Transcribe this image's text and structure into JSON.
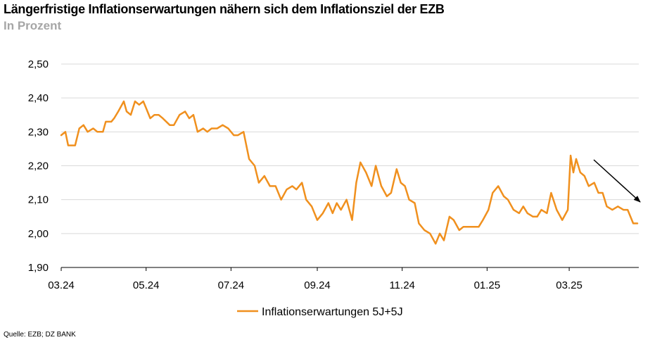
{
  "title": "Längerfristige Inflationserwartungen nähern sich dem Inflationsziel der EZB",
  "subtitle": "In Prozent",
  "source": "Quelle: EZB; DZ BANK",
  "colors": {
    "series": "#f0901e",
    "grid": "#d9d9d9",
    "axis": "#000000",
    "arrow": "#000000"
  },
  "chart_data": {
    "type": "line",
    "ylim": [
      1.9,
      2.5
    ],
    "yticks": [
      "1,90",
      "2,00",
      "2,10",
      "2,20",
      "2,30",
      "2,40",
      "2,50"
    ],
    "ytick_values": [
      1.9,
      2.0,
      2.1,
      2.2,
      2.3,
      2.4,
      2.5
    ],
    "xticks": [
      "03.24",
      "05.24",
      "07.24",
      "09.24",
      "11.24",
      "01.25",
      "03.25"
    ],
    "xlim": [
      "2024-03-01",
      "2025-04-20"
    ],
    "grid": true,
    "legend_position": "bottom",
    "annotation": "downward arrow from late March 2025 to mid April 2025",
    "series": [
      {
        "name": "Inflationserwartungen 5J+5J",
        "x": [
          "2024-03-01",
          "2024-03-04",
          "2024-03-06",
          "2024-03-11",
          "2024-03-14",
          "2024-03-17",
          "2024-03-20",
          "2024-03-24",
          "2024-03-27",
          "2024-03-31",
          "2024-04-02",
          "2024-04-06",
          "2024-04-08",
          "2024-04-11",
          "2024-04-15",
          "2024-04-17",
          "2024-04-20",
          "2024-04-23",
          "2024-04-26",
          "2024-04-29",
          "2024-05-01",
          "2024-05-04",
          "2024-05-07",
          "2024-05-10",
          "2024-05-13",
          "2024-05-18",
          "2024-05-21",
          "2024-05-25",
          "2024-05-29",
          "2024-06-01",
          "2024-06-04",
          "2024-06-07",
          "2024-06-11",
          "2024-06-14",
          "2024-06-17",
          "2024-06-21",
          "2024-06-25",
          "2024-06-29",
          "2024-07-03",
          "2024-07-06",
          "2024-07-10",
          "2024-07-14",
          "2024-07-18",
          "2024-07-21",
          "2024-07-25",
          "2024-07-29",
          "2024-08-02",
          "2024-08-06",
          "2024-08-10",
          "2024-08-14",
          "2024-08-17",
          "2024-08-21",
          "2024-08-24",
          "2024-08-28",
          "2024-09-01",
          "2024-09-05",
          "2024-09-09",
          "2024-09-12",
          "2024-09-15",
          "2024-09-18",
          "2024-09-22",
          "2024-09-26",
          "2024-09-29",
          "2024-10-02",
          "2024-10-06",
          "2024-10-10",
          "2024-10-13",
          "2024-10-17",
          "2024-10-21",
          "2024-10-24",
          "2024-10-28",
          "2024-10-31",
          "2024-11-03",
          "2024-11-06",
          "2024-11-10",
          "2024-11-13",
          "2024-11-17",
          "2024-11-21",
          "2024-11-25",
          "2024-11-28",
          "2024-12-01",
          "2024-12-05",
          "2024-12-08",
          "2024-12-12",
          "2024-12-15",
          "2024-12-19",
          "2024-12-23",
          "2024-12-26",
          "2024-12-29",
          "2025-01-02",
          "2025-01-05",
          "2025-01-09",
          "2025-01-13",
          "2025-01-16",
          "2025-01-20",
          "2025-01-24",
          "2025-01-27",
          "2025-01-30",
          "2025-02-03",
          "2025-02-06",
          "2025-02-09",
          "2025-02-13",
          "2025-02-16",
          "2025-02-20",
          "2025-02-24",
          "2025-02-28",
          "2025-03-02",
          "2025-03-04",
          "2025-03-06",
          "2025-03-09",
          "2025-03-12",
          "2025-03-15",
          "2025-03-19",
          "2025-03-22",
          "2025-03-25",
          "2025-03-28",
          "2025-04-01",
          "2025-04-05",
          "2025-04-09",
          "2025-04-12",
          "2025-04-16",
          "2025-04-19"
        ],
        "values": [
          2.29,
          2.3,
          2.26,
          2.26,
          2.31,
          2.32,
          2.3,
          2.31,
          2.3,
          2.3,
          2.33,
          2.33,
          2.34,
          2.36,
          2.39,
          2.36,
          2.35,
          2.39,
          2.38,
          2.39,
          2.37,
          2.34,
          2.35,
          2.35,
          2.34,
          2.32,
          2.32,
          2.35,
          2.36,
          2.34,
          2.35,
          2.3,
          2.31,
          2.3,
          2.31,
          2.31,
          2.32,
          2.31,
          2.29,
          2.29,
          2.3,
          2.22,
          2.2,
          2.15,
          2.17,
          2.14,
          2.14,
          2.1,
          2.13,
          2.14,
          2.13,
          2.15,
          2.1,
          2.08,
          2.04,
          2.06,
          2.09,
          2.06,
          2.09,
          2.07,
          2.1,
          2.04,
          2.15,
          2.21,
          2.18,
          2.14,
          2.2,
          2.14,
          2.11,
          2.12,
          2.19,
          2.15,
          2.14,
          2.1,
          2.09,
          2.03,
          2.01,
          2.0,
          1.97,
          2.0,
          1.98,
          2.05,
          2.04,
          2.01,
          2.02,
          2.02,
          2.02,
          2.02,
          2.04,
          2.07,
          2.12,
          2.14,
          2.11,
          2.1,
          2.07,
          2.06,
          2.08,
          2.06,
          2.05,
          2.05,
          2.07,
          2.06,
          2.12,
          2.07,
          2.04,
          2.07,
          2.23,
          2.18,
          2.22,
          2.18,
          2.17,
          2.14,
          2.15,
          2.12,
          2.12,
          2.08,
          2.07,
          2.08,
          2.07,
          2.07,
          2.03,
          2.03
        ]
      }
    ]
  }
}
